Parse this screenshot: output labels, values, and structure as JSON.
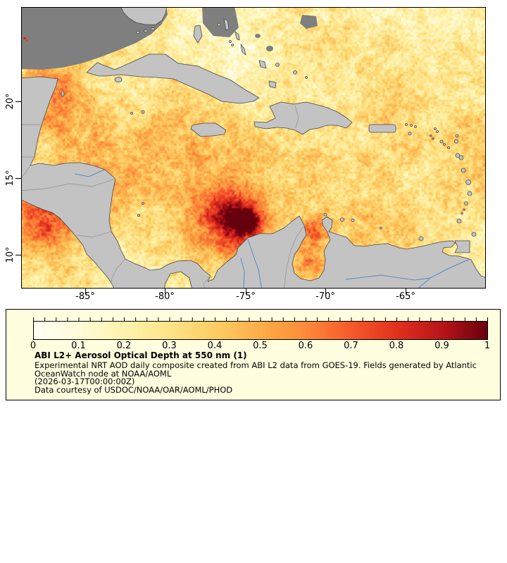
{
  "map": {
    "lat_ticks": [
      "20°",
      "15°",
      "10°"
    ],
    "lon_ticks": [
      "-85°",
      "-80°",
      "-75°",
      "-70°",
      "-65°"
    ]
  },
  "legend": {
    "ticks": [
      "0",
      "0.1",
      "0.2",
      "0.3",
      "0.4",
      "0.5",
      "0.6",
      "0.7",
      "0.8",
      "0.9",
      "1"
    ],
    "title": "ABI L2+ Aerosol Optical Depth at 550 nm (1)",
    "lines": [
      "Experimental NRT AOD daily composite created from ABI L2 data from GOES-19. Fields generated by Atlantic",
      "OceanWatch node at NOAA/AOML",
      "(2026-03-17T00:00:00Z)",
      "Data courtesy of USDOC/NOAA/OAR/AOML/PHOD"
    ],
    "colormap": [
      {
        "v": 0.0,
        "c": "#fffff4"
      },
      {
        "v": 0.1,
        "c": "#fffbd9"
      },
      {
        "v": 0.2,
        "c": "#fff3ae"
      },
      {
        "v": 0.3,
        "c": "#fee488"
      },
      {
        "v": 0.4,
        "c": "#fecc63"
      },
      {
        "v": 0.5,
        "c": "#fdad49"
      },
      {
        "v": 0.6,
        "c": "#fc8a3a"
      },
      {
        "v": 0.7,
        "c": "#f6592b"
      },
      {
        "v": 0.8,
        "c": "#e0301e"
      },
      {
        "v": 0.9,
        "c": "#b81419"
      },
      {
        "v": 1.0,
        "c": "#67000d"
      }
    ]
  },
  "colors": {
    "land": "#c3c3c3",
    "coast": "#4a4a4a",
    "border": "#9a9a9a",
    "river": "#5b87c5",
    "nodata": "#7f7f7f",
    "legend_bg": "#ffffe0"
  }
}
